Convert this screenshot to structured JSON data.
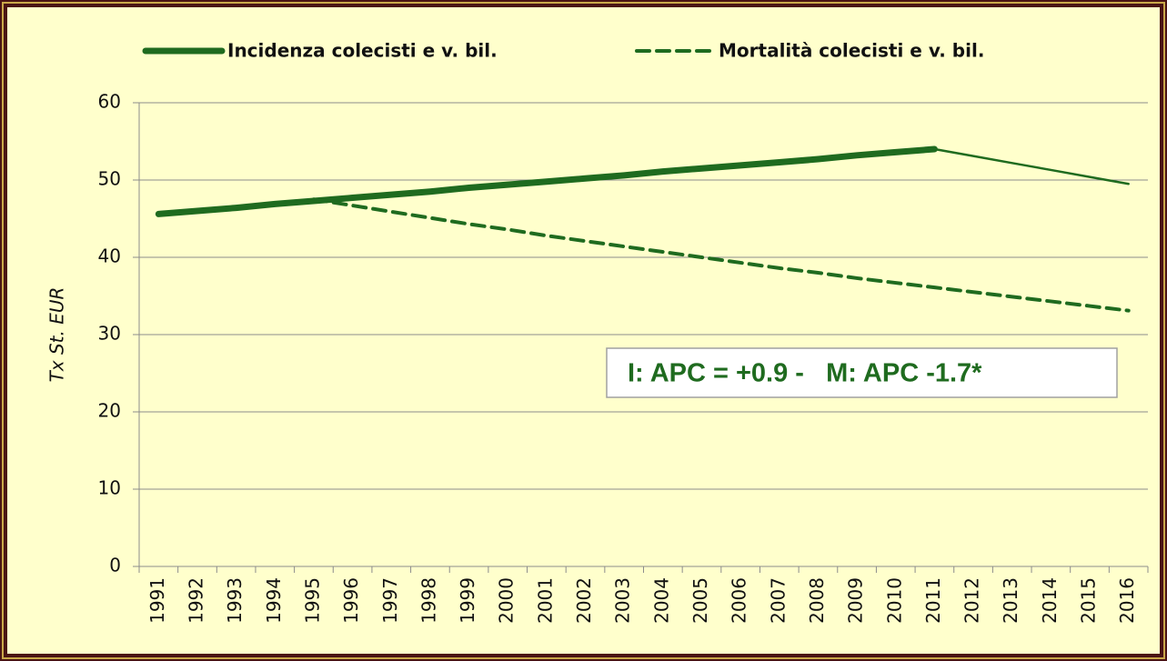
{
  "chart_data": {
    "type": "line",
    "categories": [
      "1991",
      "1992",
      "1993",
      "1994",
      "1995",
      "1996",
      "1997",
      "1998",
      "1999",
      "2000",
      "2001",
      "2002",
      "2003",
      "2004",
      "2005",
      "2006",
      "2007",
      "2008",
      "2009",
      "2010",
      "2011",
      "2012",
      "2013",
      "2014",
      "2015",
      "2016"
    ],
    "series": [
      {
        "name": "Incidenza colecisti e v. bil.",
        "color": "#1f6b1f",
        "style": "solid",
        "thick_until": "2011",
        "values": [
          45.6,
          46.0,
          46.4,
          46.9,
          47.3,
          47.7,
          48.1,
          48.5,
          49.0,
          49.4,
          49.8,
          50.2,
          50.6,
          51.1,
          51.5,
          51.9,
          52.3,
          52.7,
          53.2,
          53.6,
          54.0,
          53.1,
          52.2,
          51.3,
          50.4,
          49.5
        ]
      },
      {
        "name": "Mortalità colecisti e v. bil.",
        "color": "#1f6b1f",
        "style": "dashed",
        "values": [
          null,
          null,
          null,
          null,
          47.5,
          46.7,
          45.9,
          45.1,
          44.3,
          43.6,
          42.8,
          42.1,
          41.4,
          40.7,
          40.0,
          39.3,
          38.6,
          38.0,
          37.3,
          36.7,
          36.1,
          35.5,
          34.9,
          34.3,
          33.7,
          33.1
        ]
      }
    ],
    "ylabel": "Tx St. EUR",
    "ylim": [
      0,
      60
    ],
    "yticks": [
      0,
      10,
      20,
      30,
      40,
      50,
      60
    ],
    "grid": true,
    "legend": "top",
    "annotation": "I: APC = +0.9 -   M: APC -1.7*"
  }
}
